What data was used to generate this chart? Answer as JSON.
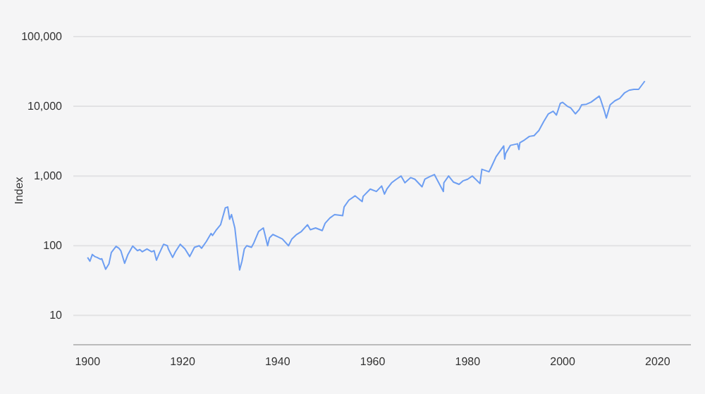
{
  "chart_data": {
    "type": "line",
    "ylabel": "Index",
    "log": true,
    "grid": "y",
    "xlim": [
      1897,
      2027
    ],
    "xticks": [
      1900,
      1920,
      1940,
      1960,
      1980,
      2000,
      2020
    ],
    "ylim": [
      3.8,
      100000
    ],
    "yticks": [
      {
        "value": 10,
        "label": "10"
      },
      {
        "value": 100,
        "label": "100"
      },
      {
        "value": 1000,
        "label": "1,000"
      },
      {
        "value": 10000,
        "label": "10,000"
      },
      {
        "value": 100000,
        "label": "100,000"
      }
    ],
    "line_style": "solid",
    "marker": "none",
    "series": [
      {
        "color": "#6d9ef2",
        "x": [
          1900,
          1900.5,
          1901,
          1901.5,
          1902,
          1902.7,
          1903,
          1903.8,
          1904.5,
          1905,
          1906,
          1906.6,
          1907,
          1907.8,
          1908.5,
          1909.5,
          1910.5,
          1911,
          1911.5,
          1912.5,
          1913.5,
          1914,
          1914.5,
          1915,
          1916,
          1916.8,
          1917,
          1917.9,
          1918.5,
          1919.5,
          1920.5,
          1921.5,
          1922.5,
          1923.5,
          1924,
          1925,
          1926,
          1926.3,
          1927,
          1928,
          1929,
          1929.5,
          1929.9,
          1930.3,
          1931,
          1932,
          1932.5,
          1933,
          1933.5,
          1934.5,
          1935,
          1936,
          1937,
          1937.9,
          1938.3,
          1939,
          1940,
          1941,
          1942.3,
          1943,
          1944,
          1945,
          1946.3,
          1946.9,
          1948,
          1949.4,
          1950,
          1951,
          1952,
          1953.7,
          1954,
          1955,
          1956.3,
          1957.8,
          1958,
          1959.5,
          1960.8,
          1961.9,
          1962.5,
          1963,
          1964,
          1965,
          1966,
          1966.8,
          1968,
          1968.9,
          1970.4,
          1971,
          1972,
          1973,
          1974.9,
          1975,
          1976,
          1977,
          1978.2,
          1979,
          1980,
          1981,
          1982.6,
          1983,
          1984.5,
          1985,
          1986,
          1987.6,
          1987.8,
          1988,
          1989,
          1990.5,
          1990.8,
          1991,
          1992,
          1993,
          1994,
          1995,
          1996,
          1997,
          1998,
          1998.7,
          1999.5,
          2000,
          2001,
          2001.7,
          2002.7,
          2003.5,
          2004,
          2005,
          2006,
          2007.7,
          2008,
          2008.8,
          2009.2,
          2010,
          2011,
          2012,
          2013,
          2014,
          2015,
          2016,
          2017.3
        ],
        "values": [
          68,
          60,
          75,
          70,
          68,
          64,
          65,
          46,
          55,
          80,
          98,
          92,
          85,
          56,
          75,
          99,
          85,
          88,
          82,
          90,
          82,
          85,
          62,
          75,
          105,
          100,
          90,
          68,
          82,
          105,
          90,
          70,
          95,
          100,
          92,
          115,
          150,
          140,
          165,
          200,
          350,
          360,
          240,
          280,
          180,
          45,
          60,
          90,
          100,
          95,
          110,
          160,
          180,
          100,
          130,
          145,
          135,
          125,
          100,
          125,
          145,
          160,
          200,
          170,
          180,
          165,
          210,
          250,
          280,
          270,
          360,
          450,
          520,
          430,
          510,
          650,
          600,
          720,
          550,
          650,
          800,
          900,
          1000,
          800,
          950,
          900,
          700,
          900,
          980,
          1050,
          600,
          800,
          1000,
          820,
          760,
          850,
          900,
          1000,
          780,
          1250,
          1150,
          1350,
          1900,
          2700,
          1750,
          2100,
          2750,
          2900,
          2400,
          3000,
          3300,
          3700,
          3800,
          4500,
          6000,
          7800,
          8500,
          7500,
          11000,
          11400,
          10000,
          9500,
          7800,
          9000,
          10500,
          10700,
          11500,
          14000,
          12500,
          8500,
          6800,
          10500,
          12000,
          13000,
          15500,
          17000,
          17500,
          17500,
          23000
        ]
      }
    ]
  }
}
